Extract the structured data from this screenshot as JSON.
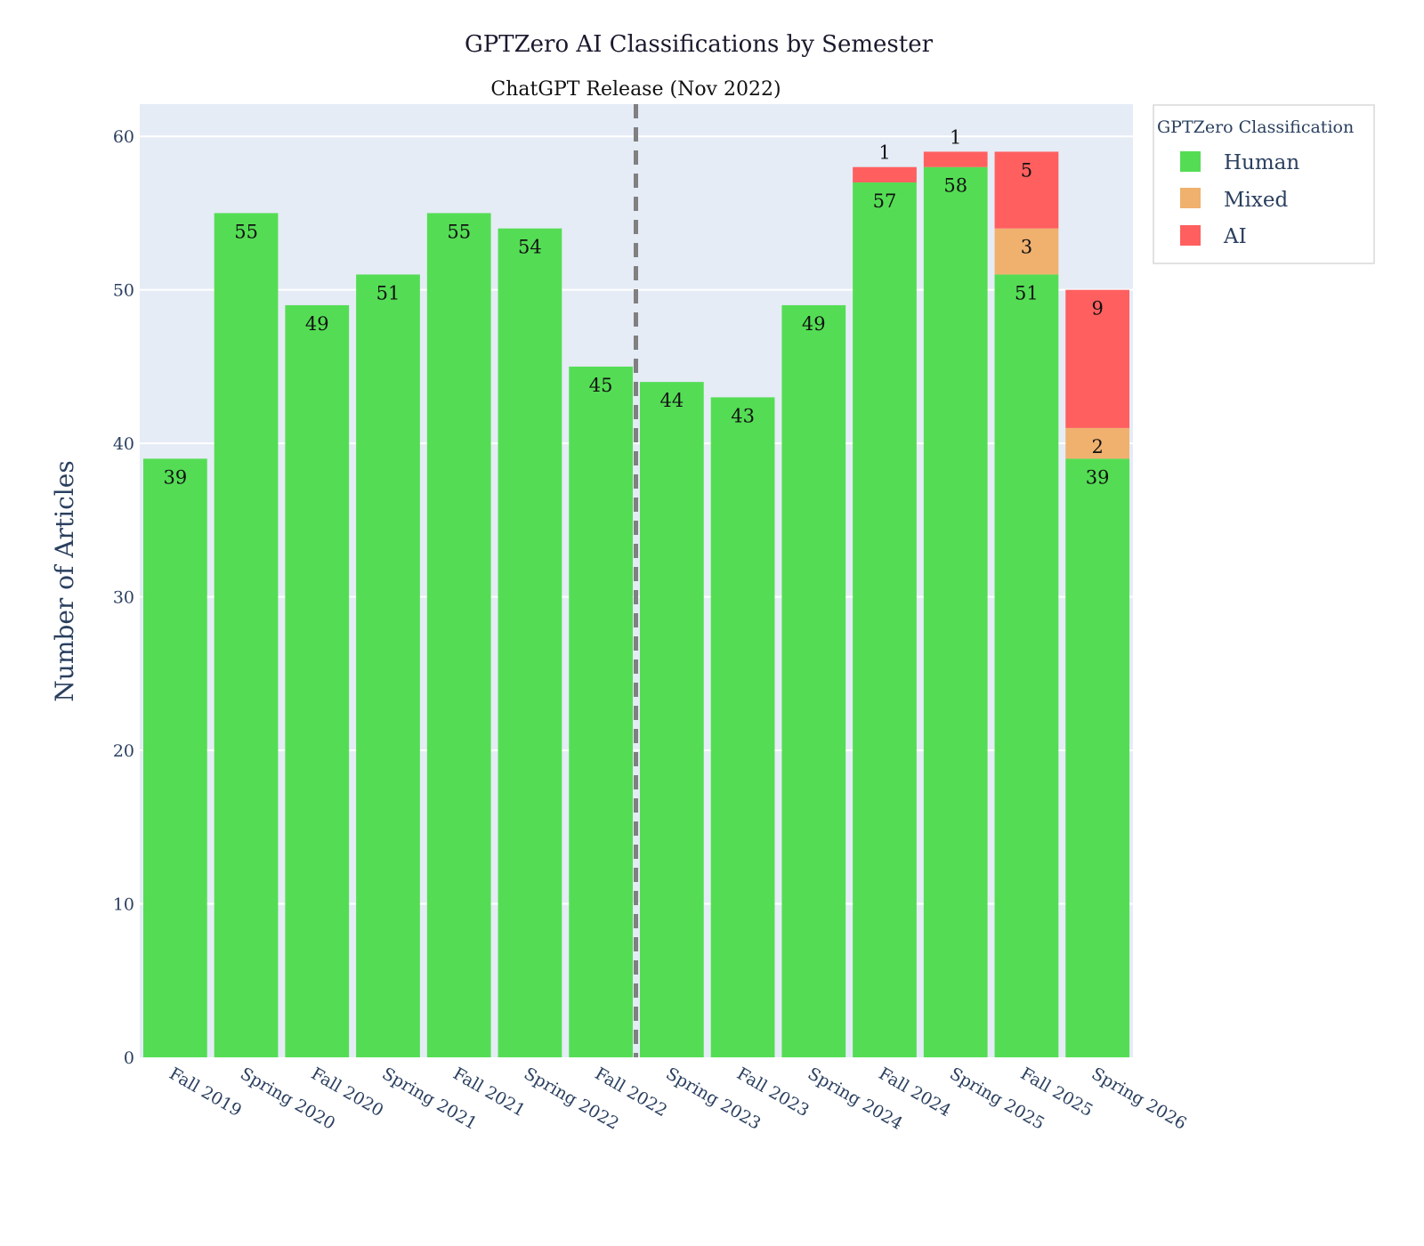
{
  "chart_data": {
    "type": "bar",
    "barmode": "stack",
    "title": "GPTZero AI Classifications by Semester",
    "xlabel": "",
    "ylabel": "Number of Articles",
    "ylim": [
      0,
      62.1
    ],
    "yticks": [
      0,
      10,
      20,
      30,
      40,
      50,
      60
    ],
    "grid": true,
    "categories": [
      "Fall 2019",
      "Spring 2020",
      "Fall 2020",
      "Spring 2021",
      "Fall 2021",
      "Spring 2022",
      "Fall 2022",
      "Spring 2023",
      "Fall 2023",
      "Spring 2024",
      "Fall 2024",
      "Spring 2025",
      "Fall 2025",
      "Spring 2026"
    ],
    "series": [
      {
        "name": "Human",
        "color": "#54dd54",
        "values": [
          39,
          55,
          49,
          51,
          55,
          54,
          45,
          44,
          43,
          49,
          57,
          58,
          51,
          39
        ]
      },
      {
        "name": "Mixed",
        "color": "#f0b06e",
        "values": [
          0,
          0,
          0,
          0,
          0,
          0,
          0,
          0,
          0,
          0,
          0,
          0,
          3,
          2
        ]
      },
      {
        "name": "AI",
        "color": "#ff5f5f",
        "values": [
          0,
          0,
          0,
          0,
          0,
          0,
          0,
          0,
          0,
          0,
          1,
          1,
          5,
          9
        ]
      }
    ],
    "legend": {
      "title": "GPTZero Classification",
      "position": "top-right"
    },
    "annotations": [
      {
        "text": "ChatGPT Release (Nov 2022)",
        "type": "vertical-dashed-line",
        "x_between": [
          "Fall 2022",
          "Spring 2023"
        ],
        "color": "#808080"
      }
    ]
  },
  "colors": {
    "plot_bg": "#e5ecf6",
    "grid": "#ffffff",
    "axis_text": "#2a3f5f"
  }
}
